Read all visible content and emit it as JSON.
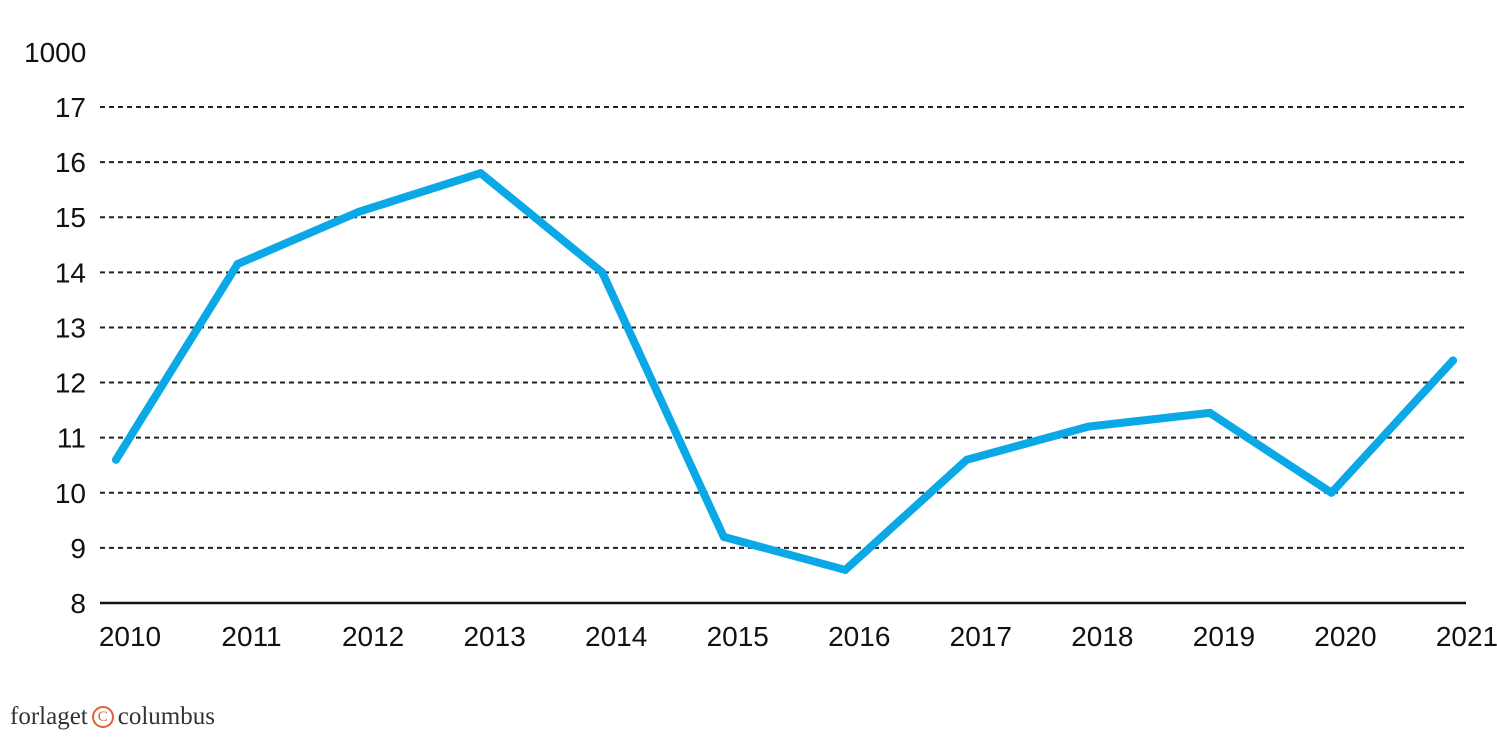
{
  "chart_data": {
    "type": "line",
    "unit_label": "1000",
    "categories": [
      "2010",
      "2011",
      "2012",
      "2013",
      "2014",
      "2015",
      "2016",
      "2017",
      "2018",
      "2019",
      "2020",
      "2021"
    ],
    "series": [
      {
        "values": [
          10.6,
          14.15,
          15.1,
          15.8,
          14.0,
          9.2,
          8.6,
          10.6,
          11.2,
          11.45,
          10.0,
          12.4
        ]
      }
    ],
    "y_ticks": [
      "8",
      "9",
      "10",
      "11",
      "12",
      "13",
      "14",
      "15",
      "16",
      "17"
    ],
    "ylim": [
      8,
      17
    ],
    "grid": true,
    "line_color": "#0aa8e6"
  },
  "brand": {
    "left": "forlaget",
    "mark": "C",
    "right": "columbus"
  }
}
